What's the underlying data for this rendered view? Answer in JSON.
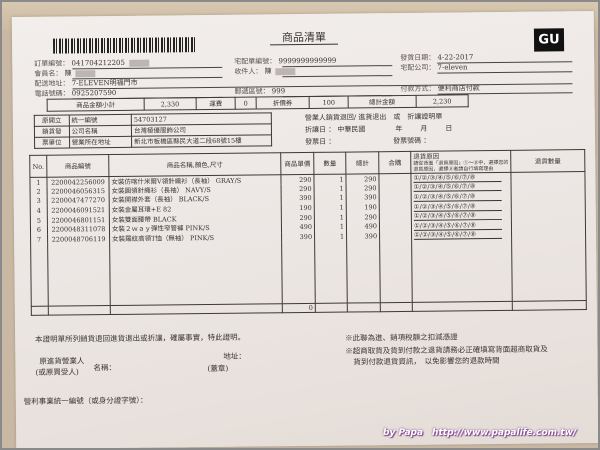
{
  "title": "商品清單",
  "logo": "GU",
  "header": {
    "order_no_label": "訂單編號：",
    "order_no": "041704212205",
    "member_label": "會員名：",
    "member": "陳",
    "address_label": "配送地址：",
    "address": "7-ELEVEN明福門市",
    "phone_label": "電話號碼：",
    "phone": "0925207590",
    "delivery_no_label": "宅配單編號：",
    "delivery_no": "9999999999999",
    "recipient_label": "收件人：",
    "recipient": "陳",
    "postal_label": "郵遞區號：",
    "postal": "999",
    "ship_date_label": "發貨日期：",
    "ship_date": "4-22-2017",
    "courier_label": "宅配公司：",
    "courier": "7-eleven",
    "payment_label": "付款方式：",
    "payment": "便利商店付款"
  },
  "summary": {
    "subtotal_label": "商品金額小計",
    "subtotal": "2,330",
    "shipping_label": "運費",
    "shipping": "0",
    "coupon_label": "折價券",
    "coupon": "100",
    "total_label": "總計金額",
    "total": "2,230"
  },
  "vendor": {
    "side": [
      "原開立",
      "銷貨發",
      "票單位"
    ],
    "rows": [
      {
        "label": "統一編號",
        "value": "54703127"
      },
      {
        "label": "公司名稱",
        "value": "台灣極優服飾公司"
      },
      {
        "label": "營業所在地址",
        "value": "新北市板橋區縣民大道二段68號15樓"
      }
    ]
  },
  "return_note": {
    "heading": "營業人銷貨退回/ 進貨退出　或　折讓證明單",
    "discount_date_label": "折讓日 ： 中華民國",
    "year": "年",
    "month": "月",
    "day": "日",
    "invoice_date_label": "發票日 ：",
    "invoice_no_label": "發票號碼 ："
  },
  "table": {
    "headers": [
      "No.",
      "商品編號",
      "商品名稱,顏色,尺寸",
      "商品單價",
      "數量",
      "總計",
      "合購",
      "退貨原因",
      "退貨數量"
    ],
    "reason_hint": "請從背面「退貨原因」①～⑧中，選擇您的退貨原因，選擇⑧者請自行填寫理由",
    "rows": [
      {
        "no": "1",
        "code": "2200042256009",
        "name": "女裝仿喀什米爾V領針織衫（長袖） GRAY/S",
        "price": "290",
        "qty": "1",
        "total": "290",
        "reason": "①/②/③/④/⑤/⑥/⑦/⑧"
      },
      {
        "no": "2",
        "code": "2200046056315",
        "name": "女裝圓領針織衫（長袖） NAVY/S",
        "price": "290",
        "qty": "1",
        "total": "290",
        "reason": "①/②/③/④/⑤/⑥/⑦/⑧"
      },
      {
        "no": "3",
        "code": "2200047477270",
        "name": "女裝開襟外套（長袖） BLACK/S",
        "price": "390",
        "qty": "1",
        "total": "390",
        "reason": "①/②/③/④/⑤/⑥/⑦/⑧"
      },
      {
        "no": "4",
        "code": "2200046091521",
        "name": "女裝金屬耳環+E 82",
        "price": "190",
        "qty": "1",
        "total": "190",
        "reason": "①/②/③/④/⑤/⑥/⑦/⑧"
      },
      {
        "no": "5",
        "code": "2200046801151",
        "name": "女裝雙面腰帶 BLACK",
        "price": "290",
        "qty": "1",
        "total": "290",
        "reason": "①/②/③/④/⑤/⑥/⑦/⑧"
      },
      {
        "no": "6",
        "code": "2200048311078",
        "name": "女裝２ｗａｙ彈性窄管褲 PINK/S",
        "price": "490",
        "qty": "1",
        "total": "490",
        "reason": "①/②/③/④/⑤/⑥/⑦/⑧"
      },
      {
        "no": "7",
        "code": "2200048706119",
        "name": "女裝羅紋高領T恤（無袖） PINK/S",
        "price": "390",
        "qty": "1",
        "total": "390",
        "reason": "①/②/③/④/⑤/⑥/⑦/⑧"
      }
    ],
    "footer_value": "0"
  },
  "footer": {
    "certify": "本證明單所列銷貨退回進貨退出或折讓，確屬事實，特此證明。",
    "buyer_line1": "原進貨營業人",
    "buyer_line2": "(或原買受人)",
    "name_label": "名稱：",
    "address_label": "地址：",
    "seal": "(蓋章)",
    "tax_id_label": "營利事業統一編號（或身分證字號）：",
    "note1": "※此聯為進、銷項稅額之扣減憑證",
    "note2a": "※超商取貨及貨到付款之退貨請務必正確填寫背面超商取貨及",
    "note2b": "貨到付款退貨資訊，　以免影響您的退款時間"
  },
  "watermark": "by Papa　http://www.papalife.com.tw/"
}
